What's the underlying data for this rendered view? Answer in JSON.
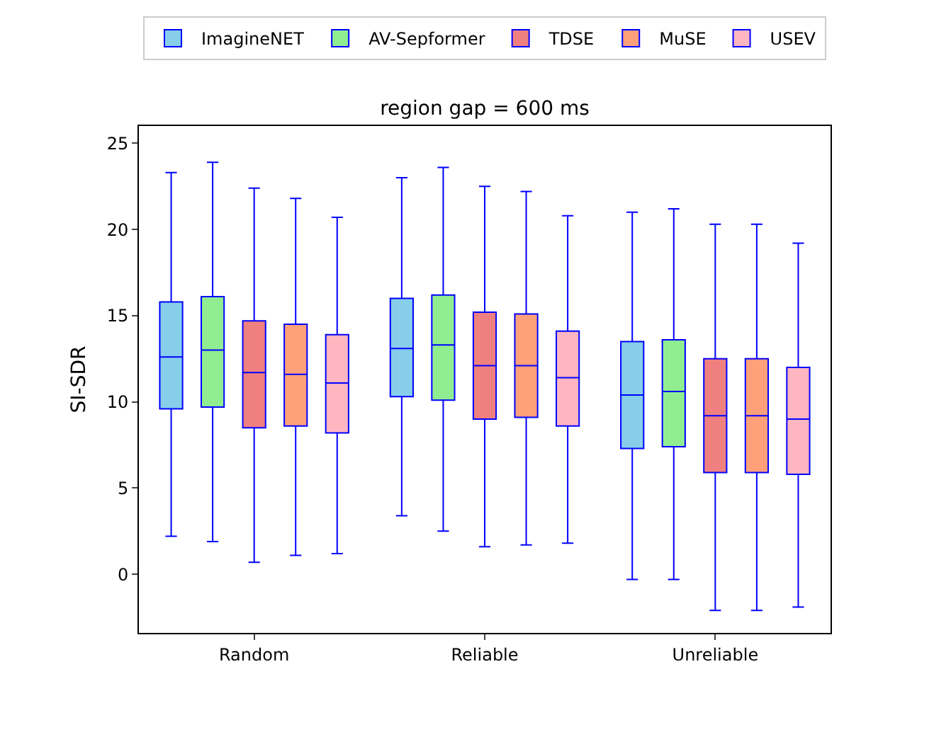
{
  "chart_data": {
    "type": "box",
    "title": "region gap = 600 ms",
    "ylabel": "SI-SDR",
    "categories": [
      "Random",
      "Reliable",
      "Unreliable"
    ],
    "ylim": [
      -3.4,
      26
    ],
    "yticks": [
      0,
      5,
      10,
      15,
      20,
      25
    ],
    "grid": false,
    "legend": "top",
    "series": [
      {
        "name": "ImagineNET",
        "color": "#87ceeb",
        "boxes": [
          {
            "low": 2.2,
            "q1": 9.6,
            "median": 12.6,
            "q3": 15.8,
            "high": 23.3
          },
          {
            "low": 3.4,
            "q1": 10.3,
            "median": 13.1,
            "q3": 16.0,
            "high": 23.0
          },
          {
            "low": -0.3,
            "q1": 7.3,
            "median": 10.4,
            "q3": 13.5,
            "high": 21.0
          }
        ]
      },
      {
        "name": "AV-Sepformer",
        "color": "#90ee90",
        "boxes": [
          {
            "low": 1.9,
            "q1": 9.7,
            "median": 13.0,
            "q3": 16.1,
            "high": 23.9
          },
          {
            "low": 2.5,
            "q1": 10.1,
            "median": 13.3,
            "q3": 16.2,
            "high": 23.6
          },
          {
            "low": -0.3,
            "q1": 7.4,
            "median": 10.6,
            "q3": 13.6,
            "high": 21.2
          }
        ]
      },
      {
        "name": "TDSE",
        "color": "#f08080",
        "boxes": [
          {
            "low": 0.7,
            "q1": 8.5,
            "median": 11.7,
            "q3": 14.7,
            "high": 22.4
          },
          {
            "low": 1.6,
            "q1": 9.0,
            "median": 12.1,
            "q3": 15.2,
            "high": 22.5
          },
          {
            "low": -2.1,
            "q1": 5.9,
            "median": 9.2,
            "q3": 12.5,
            "high": 20.3
          }
        ]
      },
      {
        "name": "MuSE",
        "color": "#ffa07a",
        "boxes": [
          {
            "low": 1.1,
            "q1": 8.6,
            "median": 11.6,
            "q3": 14.5,
            "high": 21.8
          },
          {
            "low": 1.7,
            "q1": 9.1,
            "median": 12.1,
            "q3": 15.1,
            "high": 22.2
          },
          {
            "low": -2.1,
            "q1": 5.9,
            "median": 9.2,
            "q3": 12.5,
            "high": 20.3
          }
        ]
      },
      {
        "name": "USEV",
        "color": "#ffb6c1",
        "boxes": [
          {
            "low": 1.2,
            "q1": 8.2,
            "median": 11.1,
            "q3": 13.9,
            "high": 20.7
          },
          {
            "low": 1.8,
            "q1": 8.6,
            "median": 11.4,
            "q3": 14.1,
            "high": 20.8
          },
          {
            "low": -1.9,
            "q1": 5.8,
            "median": 9.0,
            "q3": 12.0,
            "high": 19.2
          }
        ]
      }
    ]
  }
}
